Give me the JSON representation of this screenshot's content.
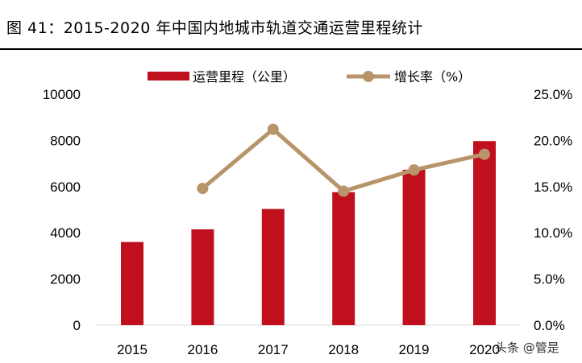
{
  "title": "图 41：2015-2020 年中国内地城市轨道交通运营里程统计",
  "watermark": "头条 @管是",
  "chart_data": {
    "type": "bar",
    "categories": [
      "2015",
      "2016",
      "2017",
      "2018",
      "2019",
      "2020"
    ],
    "series": [
      {
        "name": "运营里程（公里）",
        "type": "bar",
        "axis": "left",
        "color": "#c0101e",
        "values": [
          3600,
          4150,
          5030,
          5760,
          6730,
          7970
        ]
      },
      {
        "name": "增长率（%）",
        "type": "line",
        "axis": "right",
        "color": "#b8946a",
        "values": [
          null,
          0.148,
          0.212,
          0.145,
          0.168,
          0.185
        ]
      }
    ],
    "y_left": {
      "ylim": [
        0,
        10000
      ],
      "ticks": [
        "0",
        "2000",
        "4000",
        "6000",
        "8000",
        "10000"
      ]
    },
    "y_right": {
      "ylim": [
        0,
        0.25
      ],
      "ticks": [
        "0.0%",
        "5.0%",
        "10.0%",
        "15.0%",
        "20.0%",
        "25.0%"
      ]
    },
    "legend_position": "top-center",
    "grid": false
  }
}
